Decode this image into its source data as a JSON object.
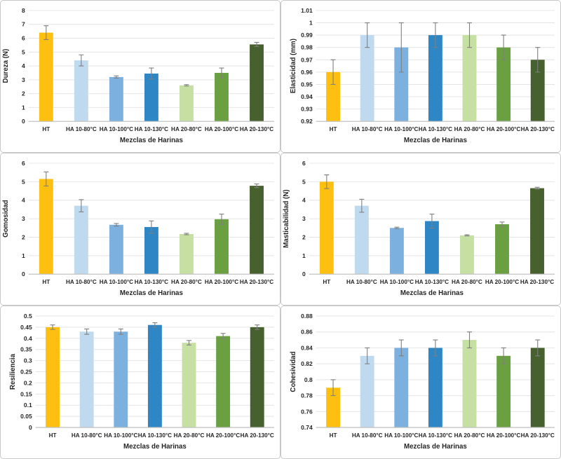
{
  "page": {
    "background": "#FFFFFF"
  },
  "chart_style": {
    "bar_colors": [
      "#FDC011",
      "#BFD9EF",
      "#7CB1DF",
      "#2E86C5",
      "#C6DFA3",
      "#6BA042",
      "#47612E"
    ],
    "error_color": "#7F7F7F",
    "grid_color": "#E4E4E4",
    "axis_color": "#BFBFBF",
    "text_color": "#262626",
    "panel_border": "#C9C9C9"
  },
  "chart_data": [
    {
      "type": "bar",
      "id": "dureza",
      "ylabel": "Dureza (N)",
      "xlabel": "Mezclas de Harinas",
      "ymin": 0,
      "ymax": 8,
      "tick_labels": [
        "0",
        "1",
        "2",
        "3",
        "4",
        "5",
        "6",
        "7",
        "8"
      ],
      "categories": [
        "HT",
        "HA 10-80°C",
        "HA 10-100°C",
        "HA 10-130°C",
        "HA 20-80°C",
        "HA 20-100°C",
        "HA 20-130°C"
      ],
      "values": [
        6.4,
        4.4,
        3.2,
        3.45,
        2.6,
        3.5,
        5.55
      ],
      "errors": [
        0.5,
        0.4,
        0.08,
        0.4,
        0.05,
        0.35,
        0.15
      ],
      "grid": true,
      "legend": "none"
    },
    {
      "type": "bar",
      "id": "elasticidad",
      "ylabel": "Elasticidad (mm)",
      "xlabel": "Mezclas de Harinas",
      "ymin": 0.92,
      "ymax": 1.01,
      "tick_labels": [
        "0.92",
        "0.93",
        "0.94",
        "0.95",
        "0.96",
        "0.97",
        "0.98",
        "0.99",
        "1",
        "1.01"
      ],
      "categories": [
        "HT",
        "HA 10-80°C",
        "HA 10-100°C",
        "HA 10-130°C",
        "HA 20-80°C",
        "HA 20-100°C",
        "HA 20-130°C"
      ],
      "values": [
        0.96,
        0.99,
        0.98,
        0.99,
        0.99,
        0.98,
        0.97
      ],
      "errors": [
        0.01,
        0.01,
        0.02,
        0.01,
        0.01,
        0.01,
        0.01
      ],
      "grid": true,
      "legend": "none"
    },
    {
      "type": "bar",
      "id": "gomosidad",
      "ylabel": "Gomosidad",
      "xlabel": "Mezclas de Harinas",
      "ymin": 0,
      "ymax": 6,
      "tick_labels": [
        "0",
        "1",
        "2",
        "3",
        "4",
        "5",
        "6"
      ],
      "categories": [
        "HT",
        "HA 10-80°C",
        "HA 10-100°C",
        "HA 10-130°C",
        "HA 20-80°C",
        "HA 20-100°C",
        "HA 20-130°C"
      ],
      "values": [
        5.15,
        3.7,
        2.67,
        2.55,
        2.17,
        2.97,
        4.78
      ],
      "errors": [
        0.38,
        0.33,
        0.07,
        0.33,
        0.04,
        0.28,
        0.1
      ],
      "grid": true,
      "legend": "none"
    },
    {
      "type": "bar",
      "id": "masticabilidad",
      "ylabel": "Masticabilidad (N)",
      "xlabel": "Mezclas de Harinas",
      "ymin": 0,
      "ymax": 6,
      "tick_labels": [
        "0",
        "1",
        "2",
        "3",
        "4",
        "5",
        "6"
      ],
      "categories": [
        "HT",
        "HA 10-80°C",
        "HA 10-100°C",
        "HA 10-130°C",
        "HA 20-80°C",
        "HA 20-100°C",
        "HA 20-130°C"
      ],
      "values": [
        5.0,
        3.7,
        2.5,
        2.87,
        2.1,
        2.7,
        4.65
      ],
      "errors": [
        0.37,
        0.35,
        0.04,
        0.38,
        0.03,
        0.12,
        0.05
      ],
      "grid": true,
      "legend": "none"
    },
    {
      "type": "bar",
      "id": "resiliencia",
      "ylabel": "Resiliencia",
      "xlabel": "Mezclas de Harinas",
      "ymin": 0,
      "ymax": 0.5,
      "tick_labels": [
        "0",
        "0.05",
        "0.1",
        "0.15",
        "0.2",
        "0.25",
        "0.3",
        "0.35",
        "0.4",
        "0.45",
        "0.5"
      ],
      "categories": [
        "HT",
        "HA 10-80°C",
        "HA 10-100°C",
        "HA 10-130°C",
        "HA 20-80°C",
        "HA 20-100°C",
        "HA 20-130°C"
      ],
      "values": [
        0.45,
        0.43,
        0.43,
        0.46,
        0.38,
        0.41,
        0.45
      ],
      "errors": [
        0.01,
        0.012,
        0.012,
        0.01,
        0.01,
        0.012,
        0.01
      ],
      "grid": true,
      "legend": "none"
    },
    {
      "type": "bar",
      "id": "cohesividad",
      "ylabel": "Cohesividad",
      "xlabel": "Mezclas de Harinas",
      "ymin": 0.74,
      "ymax": 0.88,
      "tick_labels": [
        "0.74",
        "0.76",
        "0.78",
        "0.8",
        "0.82",
        "0.84",
        "0.86",
        "0.88"
      ],
      "categories": [
        "HT",
        "HA 10-80°C",
        "HA 10-100°C",
        "HA 10-130°C",
        "HA 20-80°C",
        "HA 20-100°C",
        "HA 20-130°C"
      ],
      "values": [
        0.79,
        0.83,
        0.84,
        0.84,
        0.85,
        0.83,
        0.84
      ],
      "errors": [
        0.01,
        0.01,
        0.01,
        0.01,
        0.01,
        0.01,
        0.01
      ],
      "grid": true,
      "legend": "none"
    }
  ]
}
